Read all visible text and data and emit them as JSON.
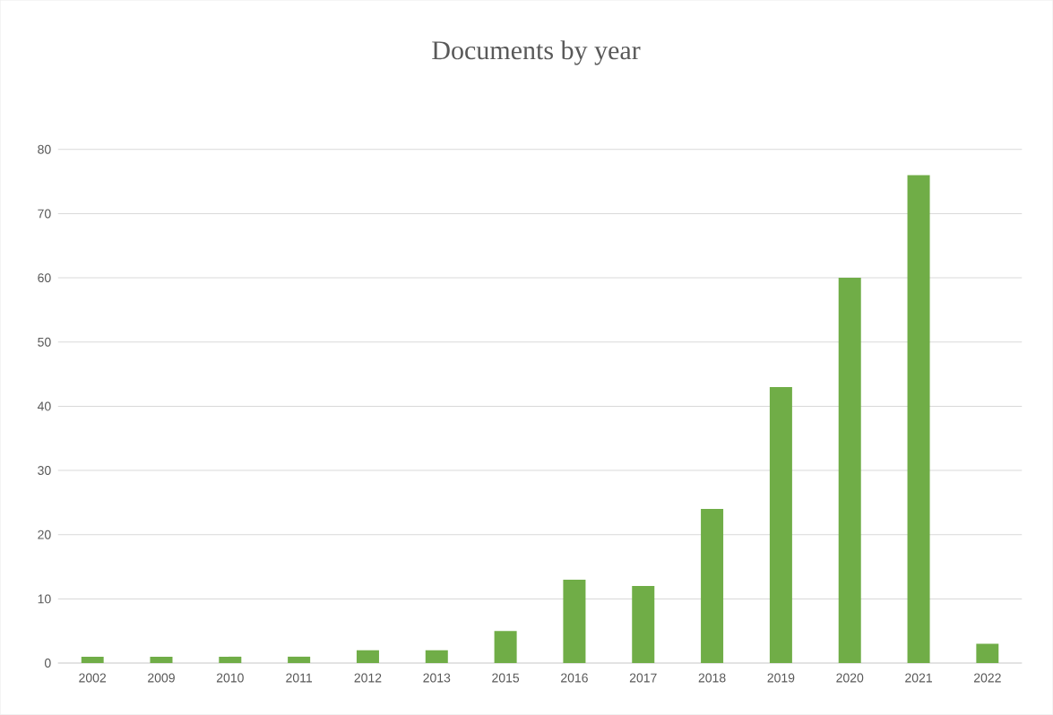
{
  "chart_data": {
    "type": "bar",
    "title": "Documents by year",
    "categories": [
      "2002",
      "2009",
      "2010",
      "2011",
      "2012",
      "2013",
      "2015",
      "2016",
      "2017",
      "2018",
      "2019",
      "2020",
      "2021",
      "2022"
    ],
    "values": [
      1,
      1,
      1,
      1,
      2,
      2,
      5,
      13,
      12,
      24,
      43,
      60,
      76,
      3
    ],
    "color": "#70ad47",
    "ylim": [
      0,
      80
    ],
    "yticks": [
      0,
      10,
      20,
      30,
      40,
      50,
      60,
      70,
      80
    ],
    "grid": "y"
  }
}
